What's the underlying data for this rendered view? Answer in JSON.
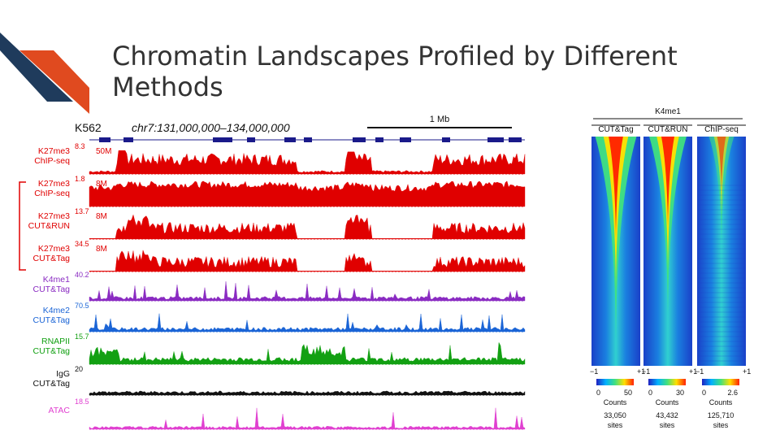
{
  "slide": {
    "title": "Chromatin Landscapes Profiled by Different Methods"
  },
  "browser": {
    "cell_line": "K562",
    "locus": "chr7:131,000,000–134,000,000",
    "scale_bar": "1 Mb",
    "tracks": [
      {
        "id": "k27me3-chip-seq-1",
        "label1": "K27me3",
        "label2": "ChIP-seq",
        "ymax": "8.3",
        "scale": "50M",
        "color": "#e00000",
        "bracketed": false
      },
      {
        "id": "k27me3-chip-seq-2",
        "label1": "K27me3",
        "label2": "ChIP-seq",
        "ymax": "1.8",
        "scale": "8M",
        "color": "#e00000",
        "bracketed": true
      },
      {
        "id": "k27me3-cut-run",
        "label1": "K27me3",
        "label2": "CUT&RUN",
        "ymax": "13.7",
        "scale": "8M",
        "color": "#e00000",
        "bracketed": true
      },
      {
        "id": "k27me3-cut-tag",
        "label1": "K27me3",
        "label2": "CUT&Tag",
        "ymax": "34.5",
        "scale": "8M",
        "color": "#e00000",
        "bracketed": true
      },
      {
        "id": "k4me1-cut-tag",
        "label1": "K4me1",
        "label2": "CUT&Tag",
        "ymax": "40.2",
        "scale": "",
        "color": "#8a2bc2",
        "bracketed": false
      },
      {
        "id": "k4me2-cut-tag",
        "label1": "K4me2",
        "label2": "CUT&Tag",
        "ymax": "70.5",
        "scale": "",
        "color": "#1a64d6",
        "bracketed": false
      },
      {
        "id": "rnapii-cut-tag",
        "label1": "RNAPII",
        "label2": "CUT&Tag",
        "ymax": "15.7",
        "scale": "",
        "color": "#12a012",
        "bracketed": false
      },
      {
        "id": "igg-cut-tag",
        "label1": "IgG",
        "label2": "CUT&Tag",
        "ymax": "20",
        "scale": "",
        "color": "#111111",
        "bracketed": false
      },
      {
        "id": "atac",
        "label1": "ATAC",
        "label2": "",
        "ymax": "18.5",
        "scale": "",
        "color": "#e040d0",
        "bracketed": false
      }
    ]
  },
  "heatmap": {
    "title": "K4me1",
    "columns": [
      {
        "name": "CUT&Tag",
        "x_left": "−1",
        "x_right": "+1",
        "scale_min": "0",
        "scale_max": "50",
        "scale_label": "Counts",
        "sites": "33,050",
        "sites_label": "sites",
        "sharpness": 0.9
      },
      {
        "name": "CUT&RUN",
        "x_left": "−1",
        "x_right": "+1",
        "scale_min": "0",
        "scale_max": "30",
        "scale_label": "Counts",
        "sites": "43,432",
        "sites_label": "sites",
        "sharpness": 0.75
      },
      {
        "name": "ChIP-seq",
        "x_left": "−1",
        "x_right": "+1",
        "scale_min": "0",
        "scale_max": "2.6",
        "scale_label": "Counts",
        "sites": "125,710",
        "sites_label": "sites",
        "sharpness": 0.3
      }
    ]
  }
}
